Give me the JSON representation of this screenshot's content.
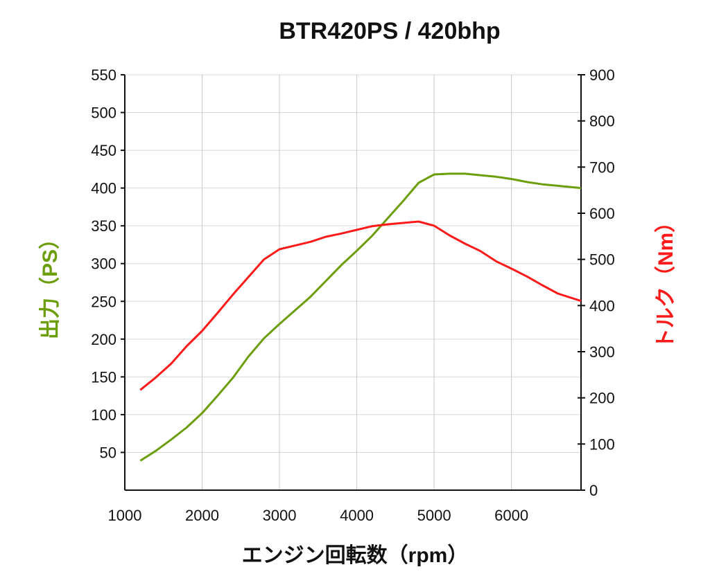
{
  "chart_data": {
    "type": "line",
    "title": "BTR420PS / 420bhp",
    "xlabel": "エンジン回転数（rpm）",
    "ylabel": "出力（PS）",
    "y2label": "トルク（Nm）",
    "xlim": [
      1000,
      6900
    ],
    "ylim": [
      0,
      550
    ],
    "y2lim": [
      0,
      900
    ],
    "grid": true,
    "x_ticks": [
      1000,
      2000,
      3000,
      4000,
      5000,
      6000
    ],
    "y_ticks": [
      50,
      100,
      150,
      200,
      250,
      300,
      350,
      400,
      450,
      500,
      550
    ],
    "y2_ticks": [
      0,
      100,
      200,
      300,
      400,
      500,
      600,
      700,
      800,
      900
    ],
    "x": [
      1200,
      1400,
      1600,
      1800,
      2000,
      2200,
      2400,
      2600,
      2800,
      3000,
      3200,
      3400,
      3600,
      3800,
      4000,
      4200,
      4400,
      4600,
      4800,
      5000,
      5200,
      5400,
      5600,
      5800,
      6000,
      6200,
      6400,
      6600,
      6900
    ],
    "series": [
      {
        "name": "出力（PS）",
        "axis": "left",
        "color": "#6b9e0a",
        "values": [
          39,
          52,
          67,
          83,
          102,
          125,
          149,
          177,
          201,
          220,
          238,
          256,
          277,
          298,
          317,
          337,
          360,
          383,
          407,
          418,
          419,
          419,
          417,
          415,
          412,
          408,
          405,
          403,
          400
        ]
      },
      {
        "name": "トルク（Nm）",
        "axis": "right",
        "color": "#ff1a1a",
        "values": [
          217,
          244,
          274,
          312,
          345,
          384,
          424,
          462,
          500,
          522,
          530,
          538,
          549,
          556,
          564,
          572,
          576,
          579,
          582,
          573,
          552,
          534,
          518,
          496,
          480,
          463,
          444,
          426,
          410
        ]
      }
    ]
  }
}
